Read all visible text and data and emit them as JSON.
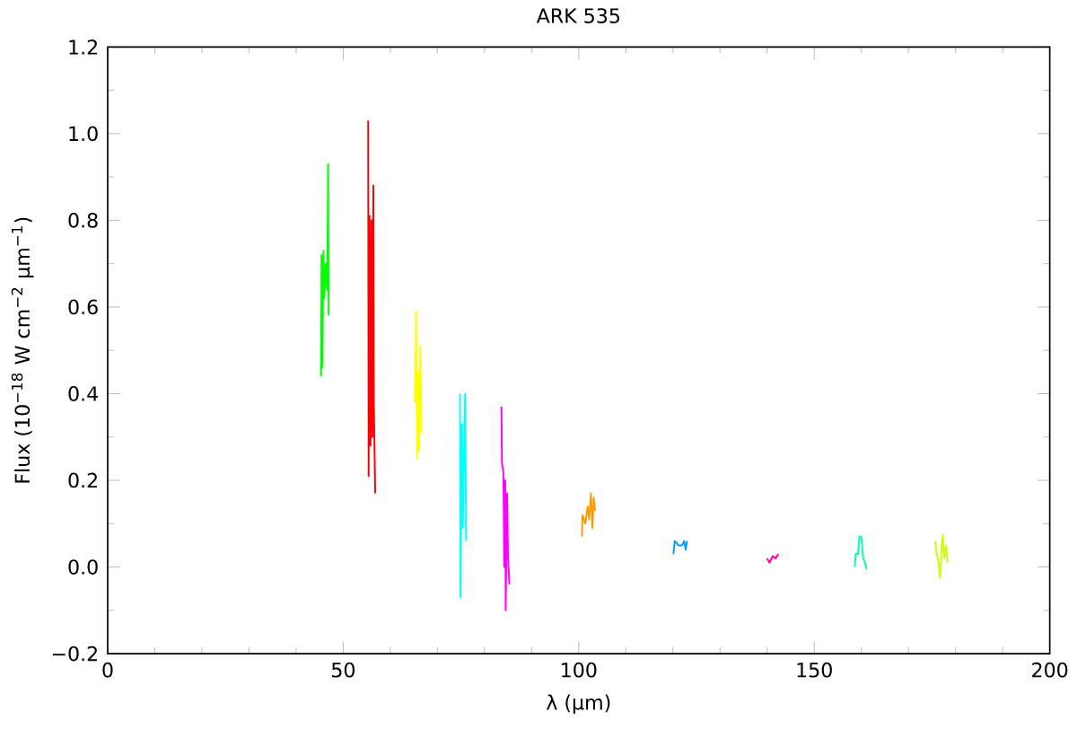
{
  "chart_data": {
    "type": "line",
    "title": "ARK 535",
    "xlabel": "λ (μm)",
    "ylabel": "Flux (10$^{−18}$ W cm$^{−2}$ μm$^{−1}$)",
    "xlim": [
      0,
      200
    ],
    "xticks": [
      0,
      50,
      100,
      150,
      200
    ],
    "ylim": [
      -0.2,
      1.2
    ],
    "yticks": [
      {
        "value": -0.2,
        "label": "−0.2"
      },
      {
        "value": 0.0,
        "label": "0.0"
      },
      {
        "value": 0.2,
        "label": "0.2"
      },
      {
        "value": 0.4,
        "label": "0.4"
      },
      {
        "value": 0.6,
        "label": "0.6"
      },
      {
        "value": 0.8,
        "label": "0.8"
      },
      {
        "value": 1.0,
        "label": "1.0"
      },
      {
        "value": 1.2,
        "label": "1.2"
      }
    ],
    "grid": false,
    "marker": "none",
    "line_style": "solid",
    "series": [
      {
        "color": "#00ff00",
        "x": [
          45.3,
          45.4,
          45.6,
          45.8,
          46.0,
          46.3,
          46.6,
          46.8,
          46.9
        ],
        "values": [
          0.44,
          0.72,
          0.46,
          0.73,
          0.62,
          0.7,
          0.64,
          0.93,
          0.58
        ]
      },
      {
        "color": "#ff0000",
        "x": [
          55.3,
          55.4,
          55.6,
          55.8,
          56.0,
          56.2,
          56.4,
          56.5,
          56.8
        ],
        "values": [
          1.03,
          0.21,
          0.81,
          0.28,
          0.8,
          0.3,
          0.88,
          0.38,
          0.17
        ]
      },
      {
        "color": "#ffff00",
        "x": [
          65.2,
          65.5,
          65.7,
          65.9,
          66.1,
          66.4,
          66.6
        ],
        "values": [
          0.38,
          0.59,
          0.25,
          0.45,
          0.27,
          0.51,
          0.31
        ]
      },
      {
        "color": "#00ffff",
        "x": [
          74.8,
          74.9,
          75.2,
          75.4,
          75.7,
          75.9,
          76.1
        ],
        "values": [
          0.4,
          -0.07,
          0.33,
          0.09,
          0.3,
          0.4,
          0.06
        ]
      },
      {
        "color": "#ff00ff",
        "x": [
          83.6,
          83.7,
          84.0,
          84.2,
          84.4,
          84.5,
          84.8,
          85.0,
          85.3
        ],
        "values": [
          0.37,
          0.24,
          0.22,
          0.0,
          0.2,
          -0.1,
          0.17,
          0.02,
          -0.04
        ]
      },
      {
        "color": "#ff9900",
        "x": [
          100.7,
          100.8,
          101.4,
          101.9,
          102.2,
          102.6,
          102.9,
          103.2,
          103.5
        ],
        "values": [
          0.07,
          0.12,
          0.1,
          0.14,
          0.11,
          0.17,
          0.09,
          0.16,
          0.13
        ]
      },
      {
        "color": "#0099ff",
        "x": [
          120.1,
          120.4,
          121.2,
          121.9,
          122.4,
          122.7,
          123.0
        ],
        "values": [
          0.03,
          0.06,
          0.05,
          0.05,
          0.06,
          0.04,
          0.06
        ]
      },
      {
        "color": "#ff0099",
        "x": [
          140.0,
          140.5,
          141.2,
          141.8,
          142.4
        ],
        "values": [
          0.02,
          0.01,
          0.025,
          0.02,
          0.03
        ]
      },
      {
        "color": "#00ffaa",
        "x": [
          158.6,
          158.8,
          159.3,
          159.6,
          160.0,
          160.4,
          160.8,
          161.1
        ],
        "values": [
          0.0,
          0.03,
          0.03,
          0.07,
          0.07,
          0.02,
          0.01,
          -0.005
        ]
      },
      {
        "color": "#ccff00",
        "x": [
          175.7,
          176.0,
          176.4,
          176.7,
          177.0,
          177.3,
          177.6,
          178.0,
          178.3
        ],
        "values": [
          0.06,
          0.03,
          0.01,
          -0.025,
          0.04,
          0.075,
          0.02,
          0.05,
          0.01
        ]
      }
    ]
  }
}
